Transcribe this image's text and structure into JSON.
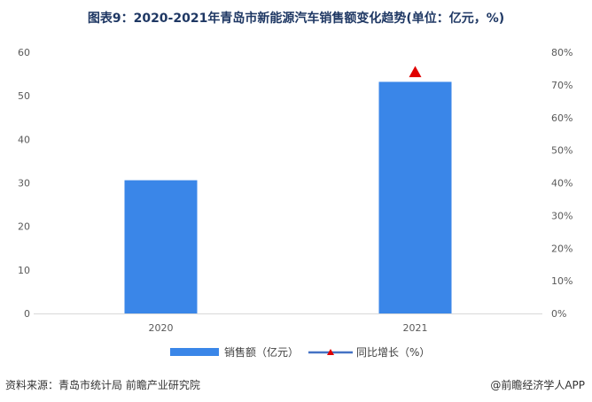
{
  "chart_data": {
    "type": "bar",
    "title": "图表9：2020-2021年青岛市新能源汽车销售额变化趋势(单位：亿元，%)",
    "categories": [
      "2020",
      "2021"
    ],
    "series": [
      {
        "name": "销售额（亿元）",
        "type": "bar",
        "axis": "left",
        "values": [
          30.6,
          53.2
        ]
      },
      {
        "name": "同比增长（%）",
        "type": "line",
        "axis": "right",
        "values": [
          null,
          73.9
        ]
      }
    ],
    "y_left": {
      "ylim": [
        0,
        60
      ],
      "ticks": [
        "0",
        "10",
        "20",
        "30",
        "40",
        "50",
        "60"
      ]
    },
    "y_right": {
      "ylim": [
        0,
        80
      ],
      "ticks": [
        "0%",
        "10%",
        "20%",
        "30%",
        "40%",
        "50%",
        "60%",
        "70%",
        "80%"
      ]
    },
    "grid": false,
    "legend_position": "bottom"
  },
  "colors": {
    "bar": "#3a86e8",
    "line": "#4472c4",
    "marker": "#e00000"
  },
  "footer": {
    "source": "资料来源：青岛市统计局 前瞻产业研究院",
    "brand": "@前瞻经济学人APP"
  }
}
